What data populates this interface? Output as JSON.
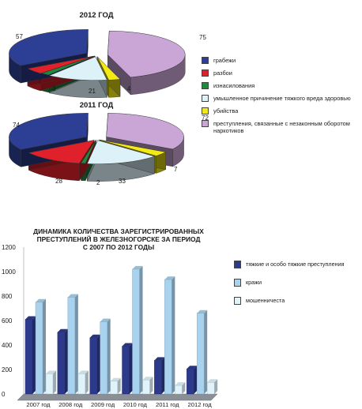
{
  "chart_data": [
    {
      "type": "pie",
      "title": "2012 ГОД",
      "series": [
        {
          "name": "грабежи",
          "value": 57,
          "color": "#2d3f95"
        },
        {
          "name": "разбои",
          "value": 7,
          "color": "#e0202a"
        },
        {
          "name": "изнасилования",
          "value": 3,
          "color": "#1d8a3c"
        },
        {
          "name": "умышленное причинение тяжкого вреда здоровью",
          "value": 21,
          "color": "#dcf2f8"
        },
        {
          "name": "убийства",
          "value": 4,
          "color": "#f2ea12"
        },
        {
          "name": "преступления, связанные с незаконным оборотом наркотиков",
          "value": 75,
          "color": "#c9a6d6"
        }
      ]
    },
    {
      "type": "pie",
      "title": "2011 ГОД",
      "series": [
        {
          "name": "грабежи",
          "value": 74,
          "color": "#2d3f95"
        },
        {
          "name": "разбои",
          "value": 28,
          "color": "#e0202a"
        },
        {
          "name": "изнасилования",
          "value": 2,
          "color": "#1d8a3c"
        },
        {
          "name": "умышленное причинение тяжкого вреда здоровью",
          "value": 33,
          "color": "#dcf2f8"
        },
        {
          "name": "убийства",
          "value": 7,
          "color": "#f2ea12"
        },
        {
          "name": "преступления, связанные с незаконным оборотом наркотиков",
          "value": 72,
          "color": "#c9a6d6"
        }
      ]
    },
    {
      "type": "bar",
      "title": "ДИНАМИКА КОЛИЧЕСТВА ЗАРЕГИСТРИРОВАННЫХ ПРЕСТУПЛЕНИЙ В ЖЕЛЕЗНОГОРСКЕ ЗА ПЕРИОД С 2007 ПО 2012 ГОДЫ",
      "title_lines": [
        "ДИНАМИКА КОЛИЧЕСТВА ЗАРЕГИСТРИРОВАННЫХ",
        "ПРЕСТУПЛЕНИЙ В ЖЕЛЕЗНОГОРСКЕ ЗА ПЕРИОД",
        "С 2007 ПО 2012 ГОДЫ"
      ],
      "categories": [
        "2007 год",
        "2008 год",
        "2009 год",
        "2010 год",
        "2011 год",
        "2012 год"
      ],
      "ylim": [
        0,
        1200
      ],
      "yticks": [
        0,
        200,
        400,
        600,
        800,
        1000,
        1200
      ],
      "grid": false,
      "legend_position": "right",
      "series": [
        {
          "name": "тяжкие и особо тяжкие преступления",
          "values": [
            610,
            505,
            460,
            390,
            275,
            205
          ],
          "color": "#2d3a8c"
        },
        {
          "name": "кражи",
          "values": [
            750,
            790,
            590,
            1020,
            935,
            660
          ],
          "color": "#a9d2ee"
        },
        {
          "name": "мошенничеста",
          "values": [
            165,
            165,
            105,
            115,
            70,
            95
          ],
          "color": "#e0f3fb"
        }
      ]
    }
  ]
}
